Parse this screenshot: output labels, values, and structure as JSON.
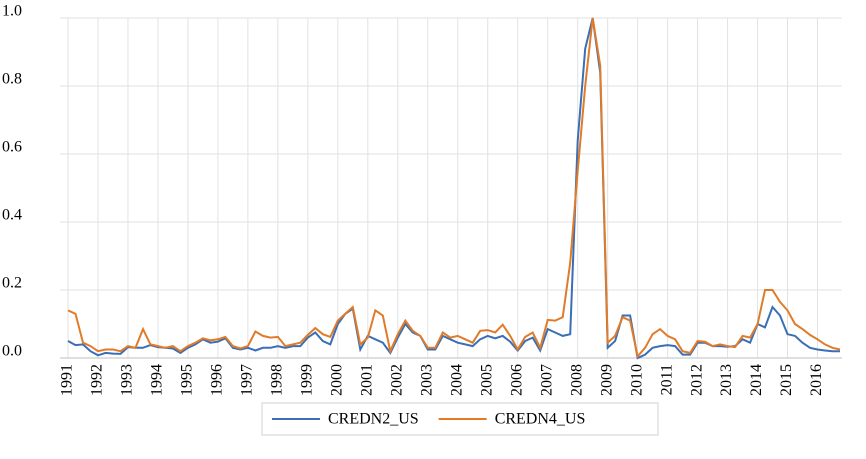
{
  "chart_data": {
    "type": "line",
    "categories": [
      "1991",
      null,
      null,
      null,
      "1992",
      null,
      null,
      null,
      "1993",
      null,
      null,
      null,
      "1994",
      null,
      null,
      null,
      "1995",
      null,
      null,
      null,
      "1996",
      null,
      null,
      null,
      "1997",
      null,
      null,
      null,
      "1998",
      null,
      null,
      null,
      "1999",
      null,
      null,
      null,
      "2000",
      null,
      null,
      null,
      "2001",
      null,
      null,
      null,
      "2002",
      null,
      null,
      null,
      "2003",
      null,
      null,
      null,
      "2004",
      null,
      null,
      null,
      "2005",
      null,
      null,
      null,
      "2006",
      null,
      null,
      null,
      "2007",
      null,
      null,
      null,
      "2008",
      null,
      null,
      null,
      "2009",
      null,
      null,
      null,
      "2010",
      null,
      null,
      null,
      "2011",
      null,
      null,
      null,
      "2012",
      null,
      null,
      null,
      "2013",
      null,
      null,
      null,
      "2014",
      null,
      null,
      null,
      "2015",
      null,
      null,
      null,
      "2016",
      null,
      null,
      null
    ],
    "series": [
      {
        "name": "CREDN2_US",
        "color": "#3a6eb5",
        "values": [
          0.05,
          0.038,
          0.04,
          0.02,
          0.008,
          0.015,
          0.013,
          0.012,
          0.032,
          0.03,
          0.03,
          0.038,
          0.032,
          0.03,
          0.028,
          0.015,
          0.03,
          0.04,
          0.055,
          0.045,
          0.048,
          0.058,
          0.03,
          0.025,
          0.03,
          0.022,
          0.03,
          0.03,
          0.035,
          0.03,
          0.035,
          0.035,
          0.06,
          0.075,
          0.05,
          0.04,
          0.1,
          0.13,
          0.145,
          0.025,
          0.065,
          0.055,
          0.045,
          0.015,
          0.06,
          0.1,
          0.075,
          0.065,
          0.025,
          0.025,
          0.065,
          0.055,
          0.045,
          0.04,
          0.035,
          0.055,
          0.065,
          0.058,
          0.065,
          0.048,
          0.022,
          0.05,
          0.06,
          0.022,
          0.085,
          0.075,
          0.065,
          0.07,
          0.64,
          0.91,
          1.0,
          0.84,
          0.03,
          0.05,
          0.125,
          0.125,
          0.0,
          0.01,
          0.03,
          0.035,
          0.038,
          0.035,
          0.01,
          0.01,
          0.045,
          0.045,
          0.035,
          0.035,
          0.033,
          0.035,
          0.055,
          0.045,
          0.1,
          0.09,
          0.15,
          0.125,
          0.07,
          0.065,
          0.045,
          0.03,
          0.025,
          0.022,
          0.02,
          0.02
        ]
      },
      {
        "name": "CREDN4_US",
        "color": "#e07b29",
        "values": [
          0.14,
          0.13,
          0.045,
          0.035,
          0.02,
          0.025,
          0.025,
          0.02,
          0.035,
          0.03,
          0.085,
          0.04,
          0.035,
          0.03,
          0.035,
          0.02,
          0.035,
          0.045,
          0.058,
          0.052,
          0.055,
          0.062,
          0.035,
          0.028,
          0.035,
          0.078,
          0.065,
          0.06,
          0.062,
          0.035,
          0.04,
          0.045,
          0.068,
          0.088,
          0.07,
          0.062,
          0.11,
          0.13,
          0.15,
          0.04,
          0.06,
          0.14,
          0.125,
          0.02,
          0.07,
          0.11,
          0.08,
          0.065,
          0.03,
          0.03,
          0.075,
          0.06,
          0.065,
          0.055,
          0.045,
          0.08,
          0.082,
          0.075,
          0.098,
          0.065,
          0.025,
          0.062,
          0.075,
          0.03,
          0.112,
          0.11,
          0.12,
          0.28,
          0.55,
          0.8,
          1.0,
          0.86,
          0.045,
          0.065,
          0.12,
          0.11,
          0.005,
          0.03,
          0.07,
          0.085,
          0.065,
          0.055,
          0.02,
          0.015,
          0.05,
          0.048,
          0.035,
          0.04,
          0.035,
          0.032,
          0.065,
          0.06,
          0.1,
          0.2,
          0.2,
          0.165,
          0.14,
          0.1,
          0.085,
          0.068,
          0.055,
          0.04,
          0.03,
          0.025
        ]
      }
    ],
    "ylim": [
      0,
      1
    ],
    "yticks": [
      {
        "value": 0,
        "label": "0.0"
      },
      0.2,
      0.4,
      0.6,
      0.8,
      {
        "value": 1,
        "label": "1.0"
      }
    ],
    "grid": true,
    "legend": "bottom"
  }
}
